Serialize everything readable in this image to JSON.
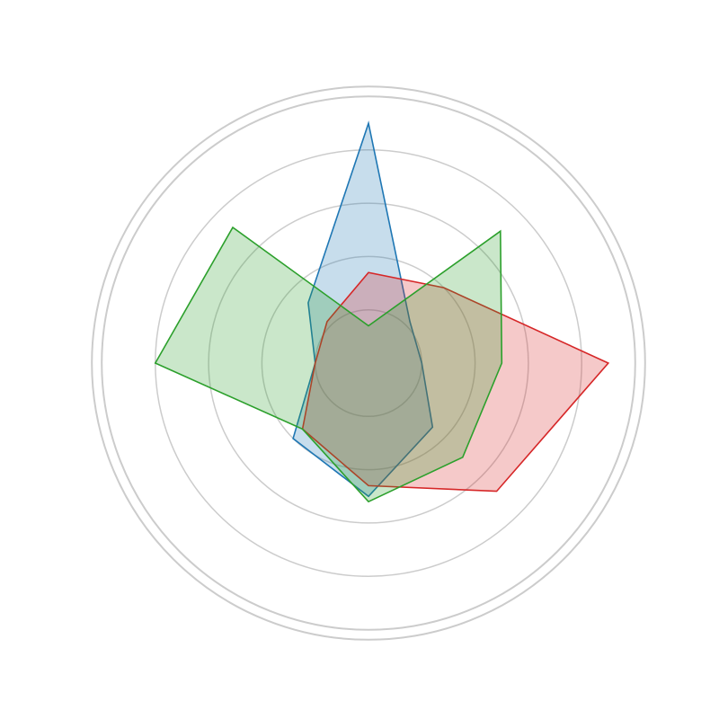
{
  "chart_data": {
    "type": "radar",
    "title": "",
    "axes_count": 8,
    "start_angle_deg": 0,
    "direction": "counterclockwise",
    "rmax": 4.5,
    "rings": [
      1,
      2,
      3,
      4
    ],
    "grid": true,
    "legend": "none",
    "series": [
      {
        "color": "#1f77b4",
        "fill": "rgba(31,119,180,0.25)",
        "values": [
          1.0,
          1.1,
          4.5,
          1.6,
          1.0,
          2.0,
          2.5,
          1.7
        ]
      },
      {
        "color": "#d62728",
        "fill": "rgba(214,39,40,0.25)",
        "values": [
          4.5,
          2.0,
          1.7,
          1.1,
          1.0,
          1.75,
          2.3,
          3.4
        ]
      },
      {
        "color": "#2ca02c",
        "fill": "rgba(44,160,44,0.25)",
        "values": [
          2.5,
          3.5,
          0.7,
          3.6,
          4.0,
          1.75,
          2.6,
          2.5
        ]
      }
    ]
  }
}
